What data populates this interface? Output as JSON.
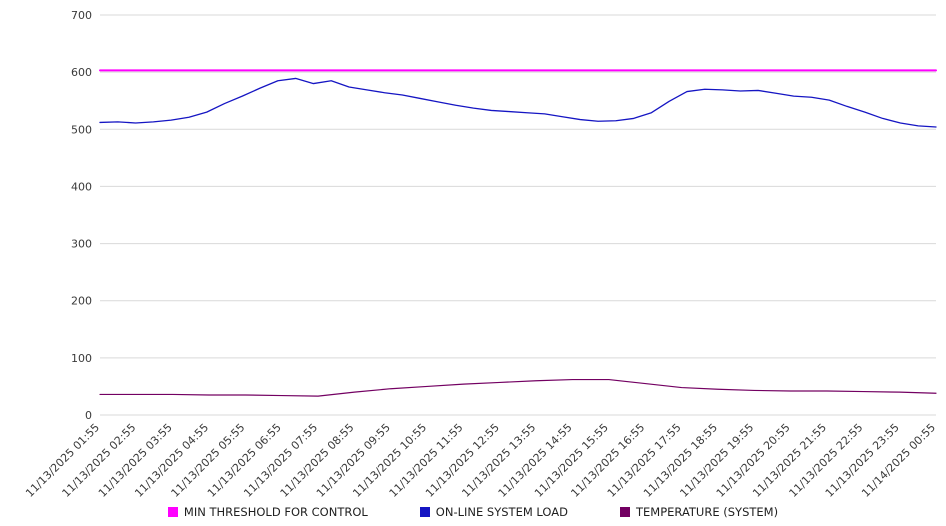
{
  "chart_data": {
    "type": "line",
    "title": "",
    "xlabel": "",
    "ylabel": "",
    "ylim": [
      0,
      700
    ],
    "y_ticks": [
      0,
      100,
      200,
      300,
      400,
      500,
      600,
      700
    ],
    "grid": "horizontal",
    "legend_position": "bottom",
    "x_labels": [
      "11/13/2025 01:55",
      "11/13/2025 02:55",
      "11/13/2025 03:55",
      "11/13/2025 04:55",
      "11/13/2025 05:55",
      "11/13/2025 06:55",
      "11/13/2025 07:55",
      "11/13/2025 08:55",
      "11/13/2025 09:55",
      "11/13/2025 10:55",
      "11/13/2025 11:55",
      "11/13/2025 12:55",
      "11/13/2025 13:55",
      "11/13/2025 14:55",
      "11/13/2025 15:55",
      "11/13/2025 16:55",
      "11/13/2025 17:55",
      "11/13/2025 18:55",
      "11/13/2025 19:55",
      "11/13/2025 20:55",
      "11/13/2025 21:55",
      "11/13/2025 22:55",
      "11/13/2025 23:55",
      "11/14/2025 00:55"
    ],
    "series": [
      {
        "id": "min-threshold",
        "name": "MIN THRESHOLD FOR CONTROL",
        "color": "#ff00ff",
        "stroke_width": 2,
        "values": [
          603,
          603
        ]
      },
      {
        "id": "online-system-load",
        "name": "ON-LINE SYSTEM LOAD",
        "color": "#1515c3",
        "stroke_width": 1.3,
        "values": [
          512,
          513,
          511,
          513,
          516,
          521,
          530,
          545,
          558,
          572,
          585,
          589,
          580,
          585,
          574,
          569,
          564,
          560,
          554,
          548,
          542,
          537,
          533,
          531,
          529,
          527,
          522,
          517,
          514,
          515,
          519,
          529,
          549,
          566,
          570,
          569,
          567,
          568,
          563,
          558,
          556,
          551,
          540,
          530,
          519,
          511,
          506,
          504
        ]
      },
      {
        "id": "temperature-system",
        "name": "TEMPERATURE (SYSTEM)",
        "color": "#730062",
        "stroke_width": 1.2,
        "values": [
          36,
          36,
          36,
          35,
          35,
          34,
          33,
          40,
          46,
          50,
          54,
          57,
          60,
          62,
          62,
          55,
          48,
          45,
          43,
          42,
          42,
          41,
          40,
          38
        ]
      }
    ]
  }
}
